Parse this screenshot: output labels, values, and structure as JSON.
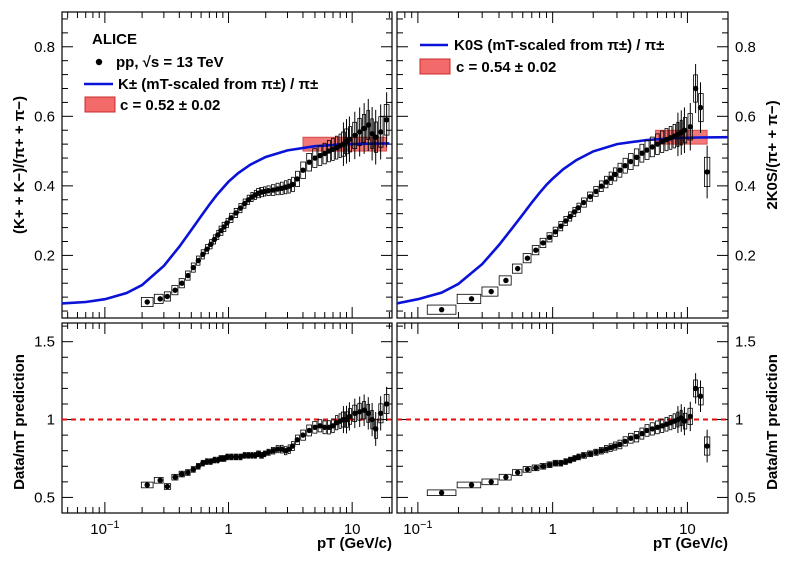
{
  "experiment_label": "ALICE",
  "legend": {
    "data_label": "pp, √s = 13 TeV",
    "left_curve_label": "K± (mT-scaled from π±) / π±",
    "left_band_label": "c = 0.52 ± 0.02",
    "right_curve_label": "K0S (mT-scaled from π±) / π±",
    "right_band_label": "c = 0.54 ± 0.02"
  },
  "colors": {
    "curve": "#0a12d8",
    "band_fill": "#f26a6a",
    "band_edge": "#c92b2b",
    "reference_line": "#e01010",
    "marker": "#000000"
  },
  "chart_data": [
    {
      "panel": "top-left",
      "type": "scatter",
      "xlabel": "pT (GeV/c)",
      "ylabel": "(K+ + K−)/(π+ + π−)",
      "x_scale": "log",
      "xlim": [
        0.045,
        21
      ],
      "ylim": [
        0.02,
        0.9
      ],
      "yticks": [
        0.2,
        0.4,
        0.6,
        0.8
      ],
      "ytick_labels": [
        "0.2",
        "0.4",
        "0.6",
        "0.8"
      ],
      "band": {
        "c": 0.52,
        "err": 0.02,
        "x_range": [
          4.0,
          19.0
        ]
      },
      "curve": {
        "x": [
          0.045,
          0.07,
          0.1,
          0.15,
          0.2,
          0.3,
          0.4,
          0.5,
          0.6,
          0.7,
          0.8,
          0.9,
          1.0,
          1.2,
          1.5,
          2.0,
          3.0,
          5.0,
          8.0,
          12.0,
          20.0
        ],
        "y": [
          0.062,
          0.066,
          0.074,
          0.092,
          0.115,
          0.17,
          0.225,
          0.273,
          0.313,
          0.346,
          0.373,
          0.394,
          0.412,
          0.437,
          0.461,
          0.483,
          0.502,
          0.514,
          0.519,
          0.521,
          0.522
        ]
      },
      "points": {
        "x": [
          0.22,
          0.28,
          0.32,
          0.37,
          0.42,
          0.47,
          0.52,
          0.57,
          0.62,
          0.67,
          0.72,
          0.77,
          0.82,
          0.87,
          0.92,
          0.97,
          1.05,
          1.15,
          1.25,
          1.35,
          1.45,
          1.55,
          1.65,
          1.75,
          1.85,
          1.95,
          2.1,
          2.3,
          2.5,
          2.7,
          2.9,
          3.1,
          3.3,
          3.6,
          4.0,
          4.5,
          5.0,
          5.5,
          6.0,
          6.5,
          7.0,
          7.5,
          8.0,
          8.5,
          9.0,
          9.5,
          10.5,
          11.5,
          12.5,
          13.5,
          14.5,
          15.5,
          17.0,
          19.0
        ],
        "y": [
          0.066,
          0.075,
          0.082,
          0.1,
          0.12,
          0.142,
          0.165,
          0.185,
          0.203,
          0.218,
          0.232,
          0.246,
          0.259,
          0.271,
          0.282,
          0.293,
          0.308,
          0.322,
          0.336,
          0.349,
          0.36,
          0.368,
          0.374,
          0.379,
          0.382,
          0.384,
          0.386,
          0.388,
          0.391,
          0.393,
          0.396,
          0.399,
          0.404,
          0.42,
          0.445,
          0.468,
          0.48,
          0.487,
          0.493,
          0.5,
          0.505,
          0.51,
          0.515,
          0.52,
          0.528,
          0.534,
          0.545,
          0.555,
          0.565,
          0.575,
          0.55,
          0.54,
          0.555,
          0.59
        ]
      }
    },
    {
      "panel": "top-right",
      "type": "scatter",
      "xlabel": "pT (GeV/c)",
      "ylabel": "2K0S/(π+ + π−)",
      "x_scale": "log",
      "xlim": [
        0.07,
        20
      ],
      "ylim": [
        0.02,
        0.9
      ],
      "yticks": [
        0.2,
        0.4,
        0.6,
        0.8
      ],
      "ytick_labels": [
        "0.2",
        "0.4",
        "0.6",
        "0.8"
      ],
      "band": {
        "c": 0.54,
        "err": 0.02,
        "x_range": [
          5.8,
          14.0
        ]
      },
      "curve": {
        "x": [
          0.07,
          0.1,
          0.15,
          0.2,
          0.3,
          0.4,
          0.5,
          0.6,
          0.7,
          0.8,
          0.9,
          1.0,
          1.2,
          1.5,
          2.0,
          3.0,
          5.0,
          8.0,
          12.0,
          20.0
        ],
        "y": [
          0.062,
          0.074,
          0.093,
          0.118,
          0.175,
          0.23,
          0.278,
          0.318,
          0.352,
          0.38,
          0.403,
          0.421,
          0.448,
          0.474,
          0.499,
          0.52,
          0.532,
          0.537,
          0.539,
          0.54
        ]
      },
      "points": {
        "x": [
          0.15,
          0.25,
          0.35,
          0.45,
          0.55,
          0.65,
          0.75,
          0.85,
          0.95,
          1.05,
          1.15,
          1.25,
          1.35,
          1.45,
          1.55,
          1.7,
          1.9,
          2.1,
          2.3,
          2.5,
          2.7,
          2.9,
          3.15,
          3.45,
          3.8,
          4.2,
          4.6,
          5.0,
          5.5,
          6.0,
          6.5,
          7.0,
          7.5,
          8.0,
          8.5,
          9.0,
          9.5,
          10.5,
          11.5,
          12.5,
          14.0
        ],
        "y": [
          0.044,
          0.075,
          0.096,
          0.128,
          0.162,
          0.192,
          0.215,
          0.236,
          0.252,
          0.268,
          0.284,
          0.299,
          0.312,
          0.325,
          0.337,
          0.352,
          0.369,
          0.384,
          0.399,
          0.411,
          0.422,
          0.433,
          0.445,
          0.458,
          0.47,
          0.482,
          0.494,
          0.503,
          0.512,
          0.52,
          0.527,
          0.533,
          0.538,
          0.543,
          0.548,
          0.553,
          0.56,
          0.57,
          0.68,
          0.625,
          0.44
        ]
      }
    },
    {
      "panel": "bottom-left",
      "type": "scatter",
      "xlabel": "pT (GeV/c)",
      "ylabel": "Data/mT prediction",
      "x_scale": "log",
      "xlim": [
        0.045,
        21
      ],
      "ylim": [
        0.4,
        1.62
      ],
      "yticks": [
        0.5,
        1.0,
        1.5
      ],
      "ytick_labels": [
        "0.5",
        "1",
        "1.5"
      ],
      "reference_line": 1.0,
      "xticks": [
        0.1,
        1,
        10
      ],
      "xtick_labels": [
        "10−1",
        "1",
        "10"
      ],
      "points": {
        "x": [
          0.22,
          0.28,
          0.32,
          0.37,
          0.42,
          0.47,
          0.52,
          0.57,
          0.62,
          0.67,
          0.72,
          0.77,
          0.82,
          0.87,
          0.92,
          0.97,
          1.05,
          1.15,
          1.25,
          1.35,
          1.45,
          1.55,
          1.65,
          1.75,
          1.85,
          1.95,
          2.1,
          2.3,
          2.5,
          2.7,
          2.9,
          3.1,
          3.3,
          3.6,
          4.0,
          4.5,
          5.0,
          5.5,
          6.0,
          6.5,
          7.0,
          7.5,
          8.0,
          8.5,
          9.0,
          9.5,
          10.5,
          11.5,
          12.5,
          13.5,
          14.5,
          15.5,
          17.0,
          19.0
        ],
        "y": [
          0.58,
          0.61,
          0.57,
          0.63,
          0.65,
          0.66,
          0.68,
          0.7,
          0.72,
          0.73,
          0.73,
          0.74,
          0.74,
          0.75,
          0.75,
          0.76,
          0.76,
          0.76,
          0.76,
          0.77,
          0.77,
          0.77,
          0.77,
          0.78,
          0.77,
          0.78,
          0.79,
          0.8,
          0.81,
          0.81,
          0.8,
          0.81,
          0.83,
          0.87,
          0.9,
          0.93,
          0.95,
          0.96,
          0.95,
          0.95,
          0.96,
          0.98,
          0.99,
          1.0,
          1.0,
          1.02,
          1.04,
          1.05,
          1.06,
          1.04,
          1.0,
          0.94,
          1.04,
          1.1
        ]
      }
    },
    {
      "panel": "bottom-right",
      "type": "scatter",
      "xlabel": "pT (GeV/c)",
      "ylabel": "Data/mT prediction",
      "x_scale": "log",
      "xlim": [
        0.07,
        20
      ],
      "ylim": [
        0.4,
        1.62
      ],
      "yticks": [
        0.5,
        1.0,
        1.5
      ],
      "ytick_labels": [
        "0.5",
        "1",
        "1.5"
      ],
      "reference_line": 1.0,
      "xticks": [
        0.1,
        1,
        10
      ],
      "xtick_labels": [
        "10−1",
        "1",
        "10"
      ],
      "points": {
        "x": [
          0.15,
          0.25,
          0.35,
          0.45,
          0.55,
          0.65,
          0.75,
          0.85,
          0.95,
          1.05,
          1.15,
          1.25,
          1.35,
          1.45,
          1.55,
          1.7,
          1.9,
          2.1,
          2.3,
          2.5,
          2.7,
          2.9,
          3.15,
          3.45,
          3.8,
          4.2,
          4.6,
          5.0,
          5.5,
          6.0,
          6.5,
          7.0,
          7.5,
          8.0,
          8.5,
          9.0,
          9.5,
          10.5,
          11.5,
          12.5,
          14.0
        ],
        "y": [
          0.53,
          0.58,
          0.6,
          0.63,
          0.66,
          0.68,
          0.69,
          0.7,
          0.71,
          0.72,
          0.72,
          0.73,
          0.74,
          0.75,
          0.76,
          0.77,
          0.78,
          0.79,
          0.8,
          0.81,
          0.82,
          0.83,
          0.84,
          0.86,
          0.88,
          0.89,
          0.91,
          0.93,
          0.94,
          0.95,
          0.96,
          0.97,
          0.98,
          0.99,
          1.0,
          1.01,
          0.99,
          1.02,
          1.2,
          1.15,
          0.83
        ]
      }
    }
  ]
}
